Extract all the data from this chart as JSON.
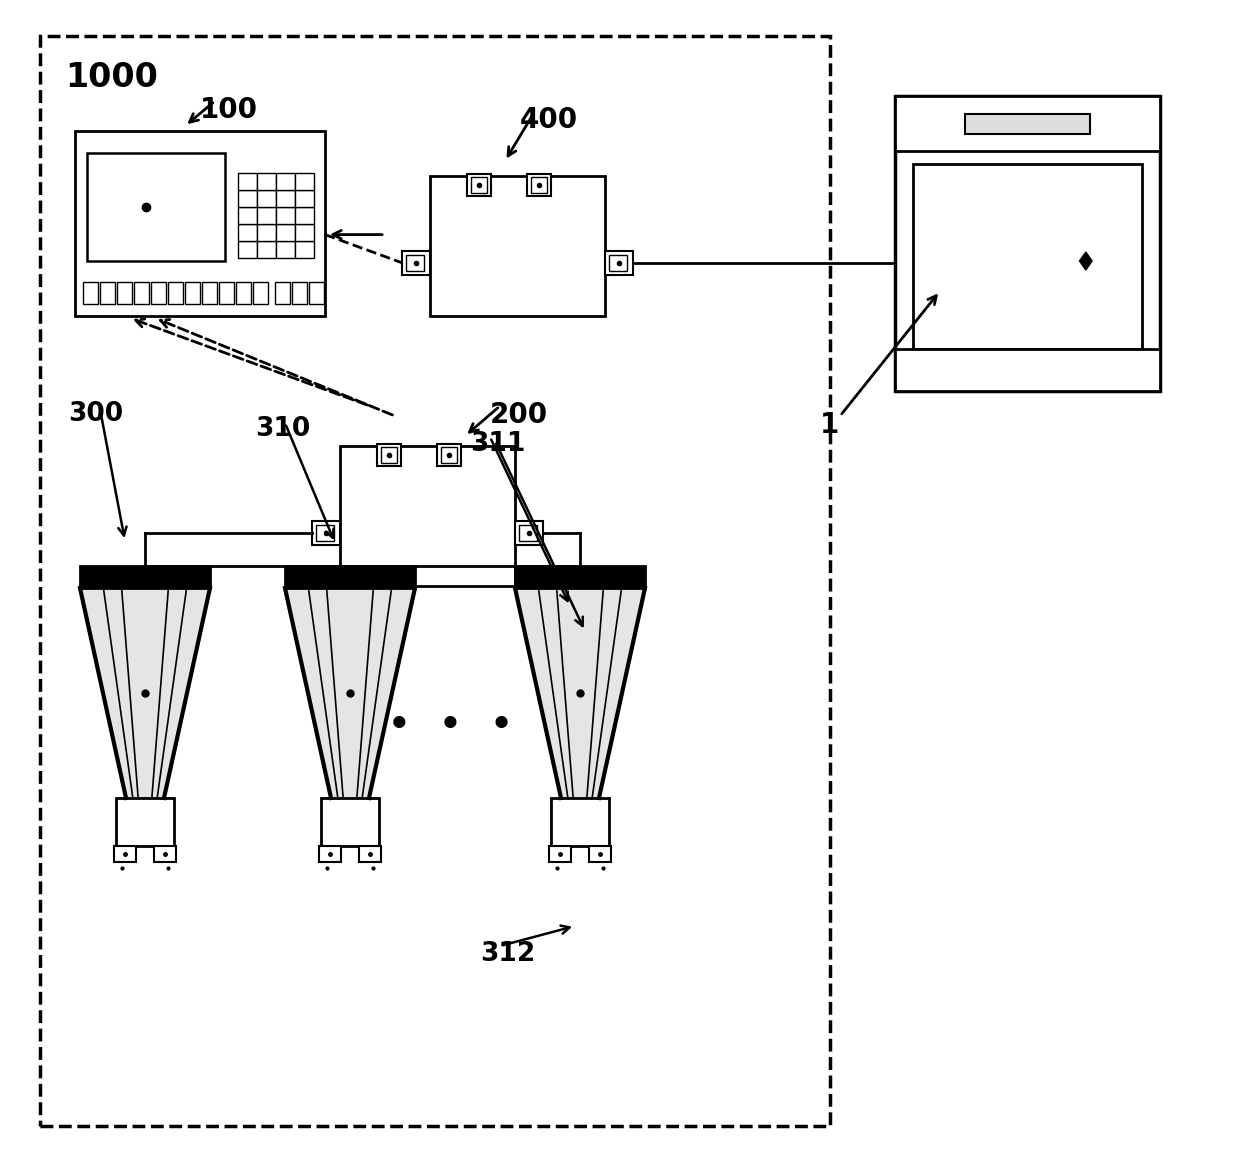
{
  "bg_color": "#ffffff",
  "lc": "#000000",
  "label_1000": "1000",
  "label_100": "100",
  "label_200": "200",
  "label_400": "400",
  "label_1": "1",
  "label_300": "300",
  "label_310": "310",
  "label_311": "311",
  "label_312": "312",
  "dots": "•  •  •",
  "figsize": [
    12.4,
    11.61
  ],
  "dpi": 100
}
